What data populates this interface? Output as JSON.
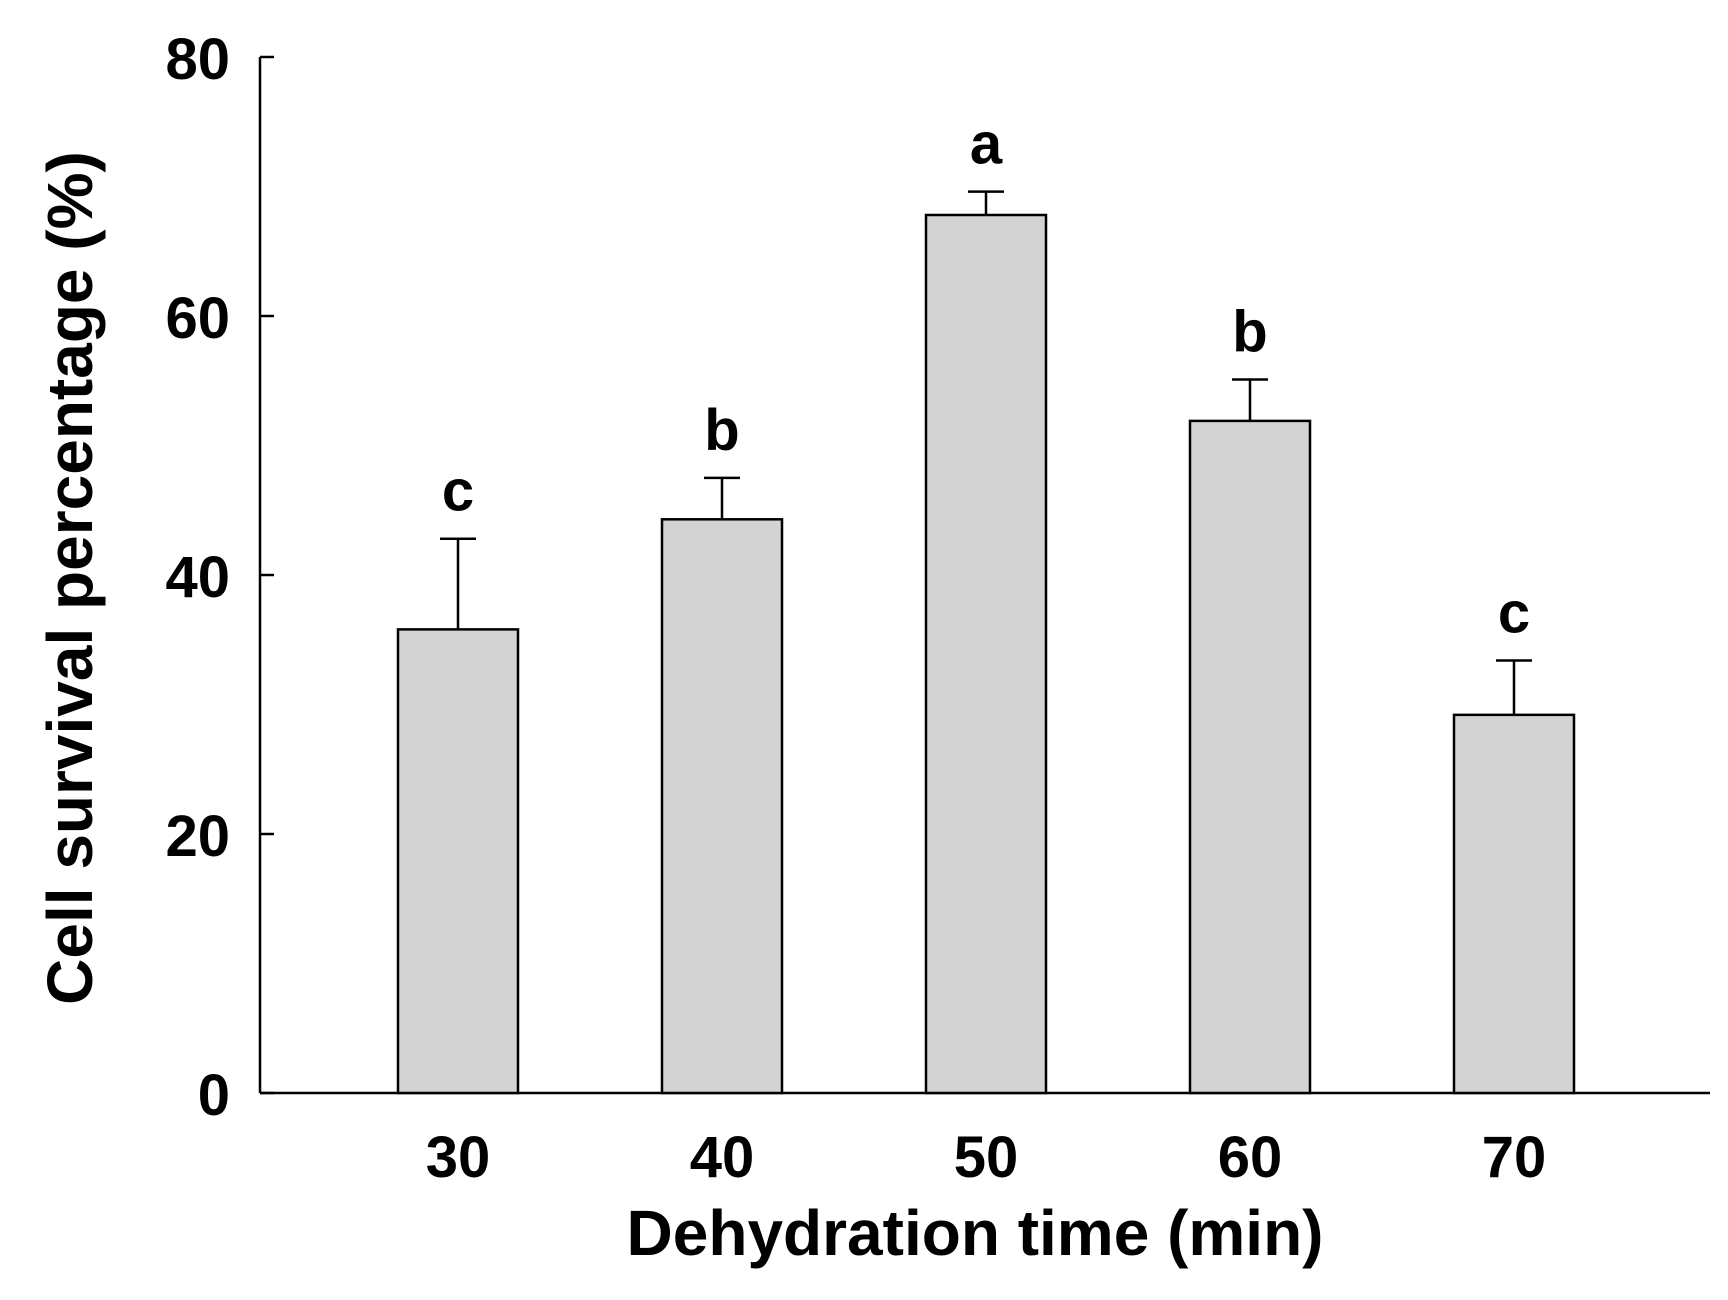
{
  "chart_data": {
    "type": "bar",
    "title": "",
    "xlabel": "Dehydration time (min)",
    "ylabel": "Cell survival percentage (%)",
    "categories": [
      "30",
      "40",
      "50",
      "60",
      "70"
    ],
    "values": [
      35.8,
      44.3,
      67.8,
      51.9,
      29.2
    ],
    "errors": [
      7.0,
      3.2,
      1.8,
      3.2,
      4.2
    ],
    "significance_letters": [
      "c",
      "b",
      "a",
      "b",
      "c"
    ],
    "ylim": [
      0,
      80
    ],
    "yticks": [
      0,
      20,
      40,
      60,
      80
    ],
    "grid": false,
    "legend": null,
    "colors": {
      "bar_fill": "#d3d3d3",
      "bar_stroke": "#000000",
      "axis": "#000000"
    }
  }
}
